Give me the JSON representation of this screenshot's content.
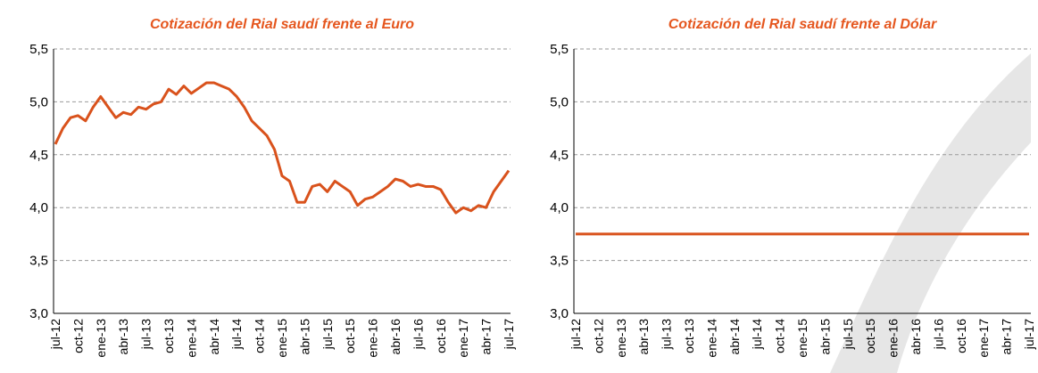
{
  "chart_data": [
    {
      "type": "line",
      "title": "Cotización del Rial saudí frente al Euro",
      "categories": [
        "jul-12",
        null,
        null,
        "oct-12",
        null,
        null,
        "ene-13",
        null,
        null,
        "abr-13",
        null,
        null,
        "jul-13",
        null,
        null,
        "oct-13",
        null,
        null,
        "ene-14",
        null,
        null,
        "abr-14",
        null,
        null,
        "jul-14",
        null,
        null,
        "oct-14",
        null,
        null,
        "ene-15",
        null,
        null,
        "abr-15",
        null,
        null,
        "jul-15",
        null,
        null,
        "oct-15",
        null,
        null,
        "ene-16",
        null,
        null,
        "abr-16",
        null,
        null,
        "jul-16",
        null,
        null,
        "oct-16",
        null,
        null,
        "ene-17",
        null,
        null,
        "abr-17",
        null,
        null,
        "jul-17"
      ],
      "series": [
        {
          "color": "#d9521c",
          "values": [
            4.6,
            4.75,
            4.85,
            4.87,
            4.82,
            4.95,
            5.05,
            4.95,
            4.85,
            4.9,
            4.88,
            4.95,
            4.93,
            4.98,
            5.0,
            5.12,
            5.07,
            5.15,
            5.08,
            5.13,
            5.18,
            5.18,
            5.15,
            5.12,
            5.05,
            4.95,
            4.82,
            4.75,
            4.68,
            4.55,
            4.3,
            4.25,
            4.05,
            4.05,
            4.2,
            4.22,
            4.15,
            4.25,
            4.2,
            4.15,
            4.02,
            4.08,
            4.1,
            4.15,
            4.2,
            4.27,
            4.25,
            4.2,
            4.22,
            4.2,
            4.2,
            4.17,
            4.05,
            3.95,
            4.0,
            3.97,
            4.02,
            4.0,
            4.15,
            4.25,
            4.35
          ]
        }
      ],
      "ylim": [
        3,
        5.5
      ],
      "yticks": [
        {
          "value": 3,
          "label": "3,0"
        },
        {
          "value": 3.5,
          "label": "3,5"
        },
        {
          "value": 4,
          "label": "4,0"
        },
        {
          "value": 4.5,
          "label": "4,5"
        },
        {
          "value": 5,
          "label": "5,0"
        },
        {
          "value": 5.5,
          "label": "5,5"
        }
      ],
      "grid": true
    },
    {
      "type": "line",
      "title": "Cotización del Rial saudí frente al Dólar",
      "categories": [
        "jul-12",
        null,
        null,
        "oct-12",
        null,
        null,
        "ene-13",
        null,
        null,
        "abr-13",
        null,
        null,
        "jul-13",
        null,
        null,
        "oct-13",
        null,
        null,
        "ene-14",
        null,
        null,
        "abr-14",
        null,
        null,
        "jul-14",
        null,
        null,
        "oct-14",
        null,
        null,
        "ene-15",
        null,
        null,
        "abr-15",
        null,
        null,
        "jul-15",
        null,
        null,
        "oct-15",
        null,
        null,
        "ene-16",
        null,
        null,
        "abr-16",
        null,
        null,
        "jul-16",
        null,
        null,
        "oct-16",
        null,
        null,
        "ene-17",
        null,
        null,
        "abr-17",
        null,
        null,
        "jul-17"
      ],
      "series": [
        {
          "color": "#d9521c",
          "values": [
            3.75,
            3.75,
            3.75,
            3.75,
            3.75,
            3.75,
            3.75,
            3.75,
            3.75,
            3.75,
            3.75,
            3.75,
            3.75,
            3.75,
            3.75,
            3.75,
            3.75,
            3.75,
            3.75,
            3.75,
            3.75,
            3.75,
            3.75,
            3.75,
            3.75,
            3.75,
            3.75,
            3.75,
            3.75,
            3.75,
            3.75,
            3.75,
            3.75,
            3.75,
            3.75,
            3.75,
            3.75,
            3.75,
            3.75,
            3.75,
            3.75,
            3.75,
            3.75,
            3.75,
            3.75,
            3.75,
            3.75,
            3.75,
            3.75,
            3.75,
            3.75,
            3.75,
            3.75,
            3.75,
            3.75,
            3.75,
            3.75,
            3.75,
            3.75,
            3.75,
            3.75
          ]
        }
      ],
      "ylim": [
        3,
        5.5
      ],
      "yticks": [
        {
          "value": 3,
          "label": "3,0"
        },
        {
          "value": 3.5,
          "label": "3,5"
        },
        {
          "value": 4,
          "label": "4,0"
        },
        {
          "value": 4.5,
          "label": "4,5"
        },
        {
          "value": 5,
          "label": "5,0"
        },
        {
          "value": 5.5,
          "label": "5,5"
        }
      ],
      "grid": true
    }
  ]
}
